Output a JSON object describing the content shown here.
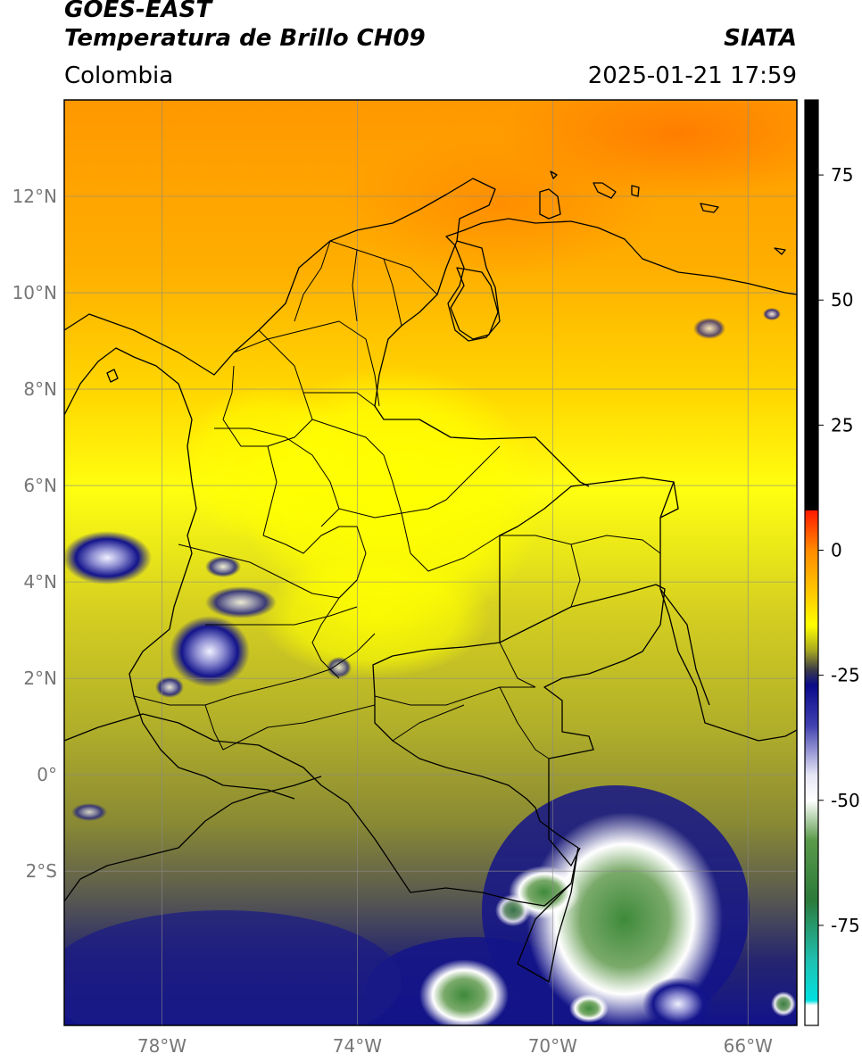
{
  "header": {
    "satellite": "GOES-EAST",
    "product": "Temperatura de Brillo CH09",
    "region": "Colombia",
    "source": "SIATA",
    "datetime": "2025-01-21 17:59"
  },
  "map": {
    "lon_range": [
      -80,
      -65
    ],
    "lat_range": [
      -5.2,
      14
    ],
    "lat_ticks": [
      {
        "value": 12,
        "label": "12°N"
      },
      {
        "value": 10,
        "label": "10°N"
      },
      {
        "value": 8,
        "label": "8°N"
      },
      {
        "value": 6,
        "label": "6°N"
      },
      {
        "value": 4,
        "label": "4°N"
      },
      {
        "value": 2,
        "label": "2°N"
      },
      {
        "value": 0,
        "label": "0°"
      },
      {
        "value": -2,
        "label": "2°S"
      }
    ],
    "lon_ticks": [
      {
        "value": -78,
        "label": "78°W"
      },
      {
        "value": -74,
        "label": "74°W"
      },
      {
        "value": -70,
        "label": "70°W"
      },
      {
        "value": -66,
        "label": "66°W"
      }
    ],
    "grid": true
  },
  "colorbar": {
    "range": [
      -95,
      90
    ],
    "ticks": [
      {
        "value": 75,
        "label": "75"
      },
      {
        "value": 50,
        "label": "50"
      },
      {
        "value": 25,
        "label": "25"
      },
      {
        "value": 0,
        "label": "0"
      },
      {
        "value": -25,
        "label": "-25"
      },
      {
        "value": -50,
        "label": "-50"
      },
      {
        "value": -75,
        "label": "-75"
      }
    ],
    "stops": [
      {
        "value": 90,
        "color": "#000000"
      },
      {
        "value": 8,
        "color": "#000000"
      },
      {
        "value": 7.9,
        "color": "#ff1a00"
      },
      {
        "value": 0,
        "color": "#ff8a00"
      },
      {
        "value": -10,
        "color": "#ffd400"
      },
      {
        "value": -15,
        "color": "#ffff00"
      },
      {
        "value": -20,
        "color": "#a8a820"
      },
      {
        "value": -24,
        "color": "#3a3a4a"
      },
      {
        "value": -27,
        "color": "#0a0a8a"
      },
      {
        "value": -35,
        "color": "#4040b0"
      },
      {
        "value": -45,
        "color": "#e6e6f5"
      },
      {
        "value": -50,
        "color": "#ffffff"
      },
      {
        "value": -58,
        "color": "#5a9a4a"
      },
      {
        "value": -70,
        "color": "#2a7a3a"
      },
      {
        "value": -82,
        "color": "#20c0b0"
      },
      {
        "value": -90,
        "color": "#00e0e0"
      },
      {
        "value": -91,
        "color": "#ffffff"
      },
      {
        "value": -95,
        "color": "#ffffff"
      }
    ]
  },
  "colors": {
    "warm_orange": "#ff9a00",
    "yellow": "#ffff10",
    "olive": "#b0b030",
    "dark_olive": "#6a6a40",
    "navy_cloud": "#14148a",
    "white_cloud": "#f4f4ff",
    "green_cloud": "#4a8a3a"
  }
}
